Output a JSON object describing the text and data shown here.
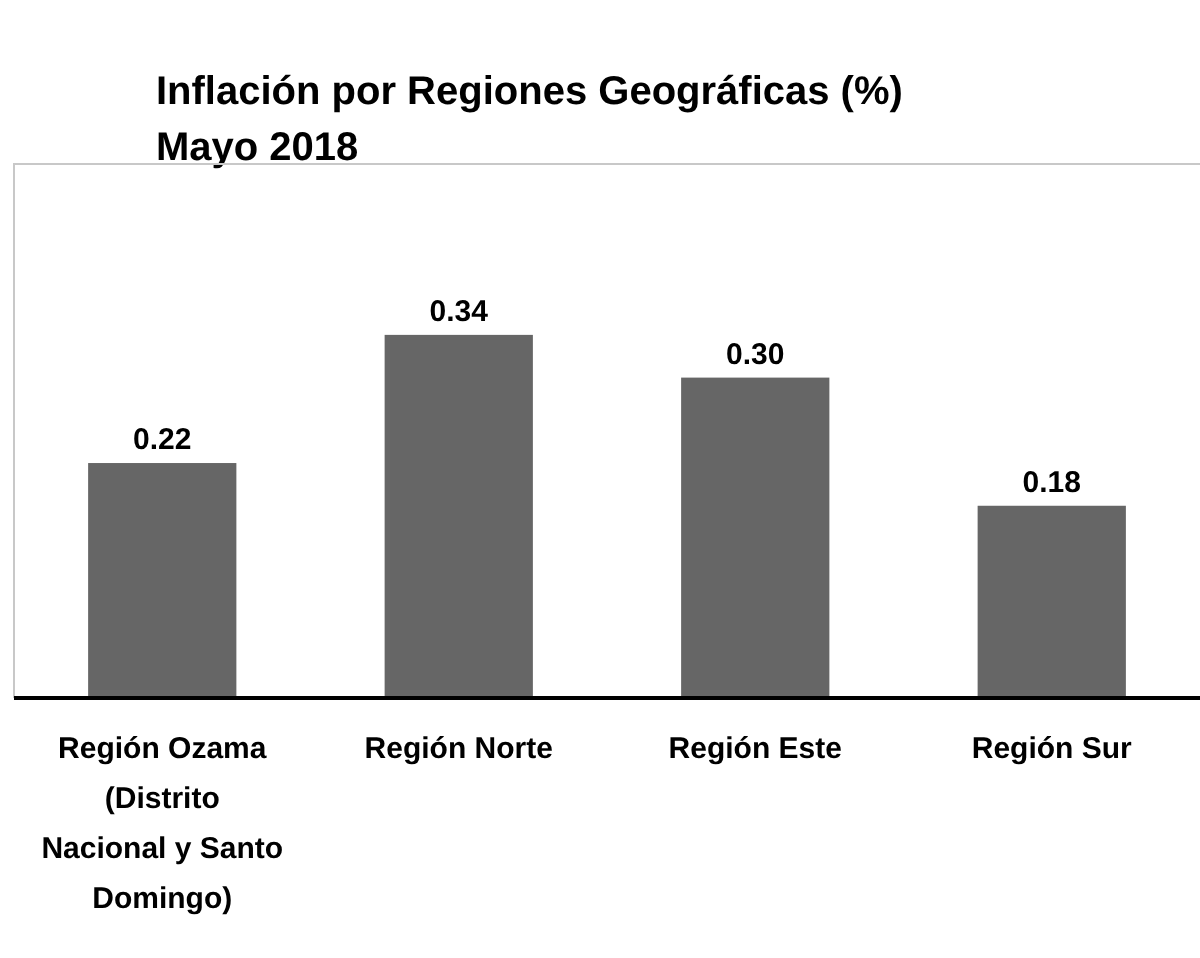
{
  "chart_data": {
    "type": "bar",
    "title": "Inflación por Regiones Geográficas (%)",
    "subtitle": "Mayo 2018",
    "categories": [
      "Región Ozama (Distrito Nacional y Santo Domingo)",
      "Región Norte",
      "Región Este",
      "Región Sur"
    ],
    "values": [
      0.22,
      0.34,
      0.3,
      0.18
    ],
    "color": "#666666",
    "ylim": [
      0,
      0.5
    ],
    "value_labels": [
      "0.22",
      "0.34",
      "0.30",
      "0.18"
    ],
    "tick_labels": "x"
  }
}
